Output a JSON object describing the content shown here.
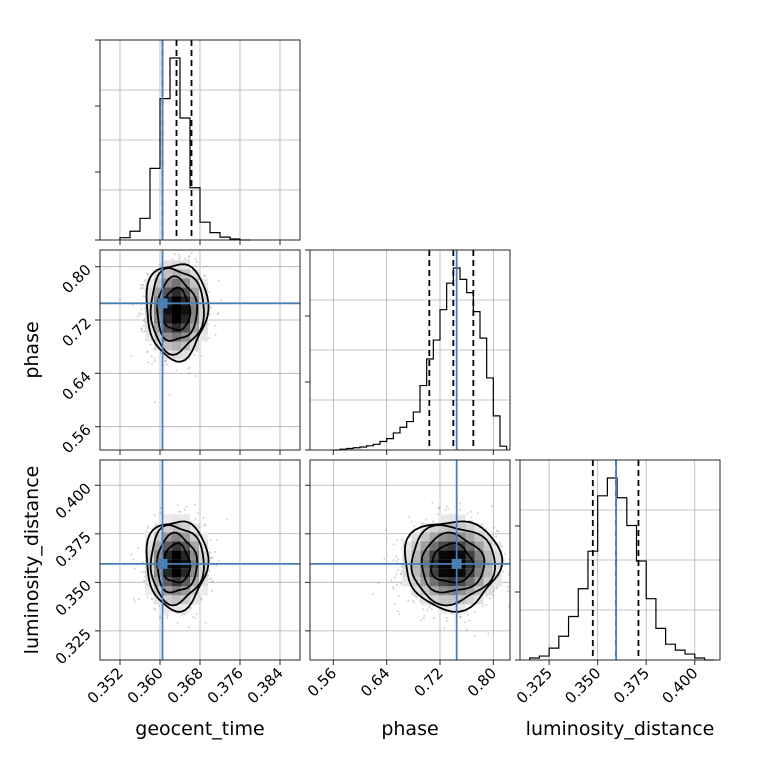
{
  "colors": {
    "truth": "#4a7fb4",
    "line": "#000000",
    "grid": "#b0b0b0",
    "points": "#7f7f7f"
  },
  "chart_data": {
    "type": "corner",
    "grid": true,
    "parameters": [
      {
        "name": "geocent_time",
        "label": "geocent_time",
        "range": [
          0.348,
          0.388
        ],
        "ticks": [
          0.352,
          0.36,
          0.368,
          0.376,
          0.384
        ],
        "tick_labels": [
          "0.352",
          "0.360",
          "0.368",
          "0.376",
          "0.384"
        ],
        "truth": 0.3605,
        "quantiles": [
          0.3605,
          0.3633,
          0.3663
        ]
      },
      {
        "name": "phase",
        "label": "phase",
        "range": [
          0.525,
          0.825
        ],
        "ticks": [
          0.56,
          0.64,
          0.72,
          0.8
        ],
        "tick_labels": [
          "0.56",
          "0.64",
          "0.72",
          "0.80"
        ],
        "truth": 0.745,
        "quantiles": [
          0.704,
          0.74,
          0.77
        ]
      },
      {
        "name": "luminosity_distance",
        "label": "luminosity_distance",
        "range": [
          0.31,
          0.413
        ],
        "ticks": [
          0.325,
          0.35,
          0.375,
          0.4
        ],
        "tick_labels": [
          "0.325",
          "0.350",
          "0.375",
          "0.400"
        ],
        "truth": 0.3595,
        "quantiles": [
          0.3475,
          0.3595,
          0.371
        ]
      }
    ],
    "histograms": [
      {
        "parameter": "geocent_time",
        "bin_edges": [
          0.352,
          0.354,
          0.356,
          0.358,
          0.36,
          0.362,
          0.364,
          0.366,
          0.368,
          0.37,
          0.372,
          0.374,
          0.376,
          0.378
        ],
        "counts": [
          0.012,
          0.045,
          0.112,
          0.37,
          0.73,
          0.94,
          0.63,
          0.27,
          0.092,
          0.038,
          0.015,
          0.005,
          0.0
        ]
      },
      {
        "parameter": "phase",
        "bin_edges": [
          0.56,
          0.57,
          0.58,
          0.59,
          0.6,
          0.61,
          0.62,
          0.63,
          0.64,
          0.65,
          0.66,
          0.67,
          0.68,
          0.69,
          0.7,
          0.71,
          0.72,
          0.73,
          0.74,
          0.75,
          0.76,
          0.77,
          0.78,
          0.79,
          0.8,
          0.81,
          0.82
        ],
        "counts": [
          0.0,
          0.004,
          0.008,
          0.012,
          0.016,
          0.022,
          0.03,
          0.045,
          0.06,
          0.09,
          0.12,
          0.15,
          0.2,
          0.34,
          0.48,
          0.58,
          0.74,
          0.88,
          0.96,
          0.9,
          0.83,
          0.73,
          0.59,
          0.38,
          0.18,
          0.02
        ]
      },
      {
        "parameter": "luminosity_distance",
        "bin_edges": [
          0.315,
          0.32,
          0.325,
          0.33,
          0.335,
          0.34,
          0.345,
          0.35,
          0.355,
          0.36,
          0.365,
          0.37,
          0.375,
          0.38,
          0.385,
          0.39,
          0.395,
          0.4,
          0.405,
          0.41
        ],
        "counts": [
          0.01,
          0.02,
          0.06,
          0.12,
          0.22,
          0.36,
          0.55,
          0.83,
          0.92,
          0.82,
          0.68,
          0.5,
          0.31,
          0.16,
          0.08,
          0.05,
          0.03,
          0.01,
          0.0
        ]
      }
    ],
    "density_2d": [
      {
        "x": "geocent_time",
        "y": "phase",
        "center": [
          0.3633,
          0.735
        ],
        "sigma": [
          0.0028,
          0.033
        ],
        "contour_levels": [
          1.0,
          1.5,
          2.0,
          2.3
        ]
      },
      {
        "x": "geocent_time",
        "y": "luminosity_distance",
        "center": [
          0.3633,
          0.3595
        ],
        "sigma": [
          0.0028,
          0.0105
        ],
        "contour_levels": [
          1.0,
          1.5,
          2.0,
          2.3
        ]
      },
      {
        "x": "phase",
        "y": "luminosity_distance",
        "center": [
          0.738,
          0.3595
        ],
        "sigma": [
          0.033,
          0.0105
        ],
        "contour_levels": [
          1.0,
          1.5,
          2.0,
          2.3
        ]
      }
    ]
  }
}
